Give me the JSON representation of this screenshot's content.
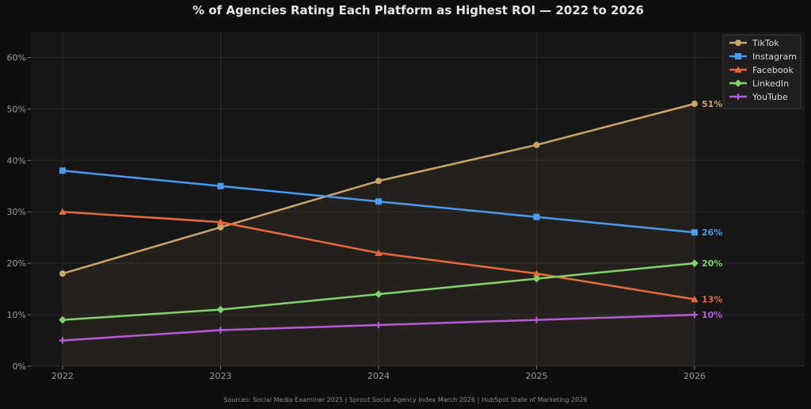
{
  "chart_data": {
    "type": "line",
    "title": "% of Agencies Rating Each Platform as Highest ROI — 2022 to 2026",
    "xlabel": "",
    "ylabel": "",
    "x": [
      "2022",
      "2023",
      "2024",
      "2025",
      "2026"
    ],
    "ylim": [
      0,
      65
    ],
    "yticks": [
      0,
      10,
      20,
      30,
      40,
      50,
      60
    ],
    "ytick_suffix": "%",
    "grid": true,
    "legend": "top-right",
    "series": [
      {
        "name": "TikTok",
        "values": [
          18,
          27,
          36,
          43,
          51
        ],
        "color": "#c9a46b",
        "marker": "circle",
        "fill_area": true,
        "end_label": "51%"
      },
      {
        "name": "Instagram",
        "values": [
          38,
          35,
          32,
          29,
          26
        ],
        "color": "#4a9bf0",
        "marker": "square",
        "end_label": "26%"
      },
      {
        "name": "Facebook",
        "values": [
          30,
          28,
          22,
          18,
          13
        ],
        "color": "#e8693a",
        "marker": "triangle",
        "end_label": "13%"
      },
      {
        "name": "LinkedIn",
        "values": [
          9,
          11,
          14,
          17,
          20
        ],
        "color": "#7fd46a",
        "marker": "diamond",
        "end_label": "20%"
      },
      {
        "name": "YouTube",
        "values": [
          5,
          7,
          8,
          9,
          10
        ],
        "color": "#b65ad9",
        "marker": "plus",
        "end_label": "10%"
      }
    ],
    "source": "Sources: Social Media Examiner 2025 | Sprout Social Agency Index March 2026 | HubSpot State of Marketing 2026"
  },
  "colors": {
    "page_background": "#0e0e0e",
    "plot_background": "#161616",
    "grid": "#2a2a2a",
    "legend_background": "#1e1e1e",
    "legend_border": "#3a3a3a"
  }
}
